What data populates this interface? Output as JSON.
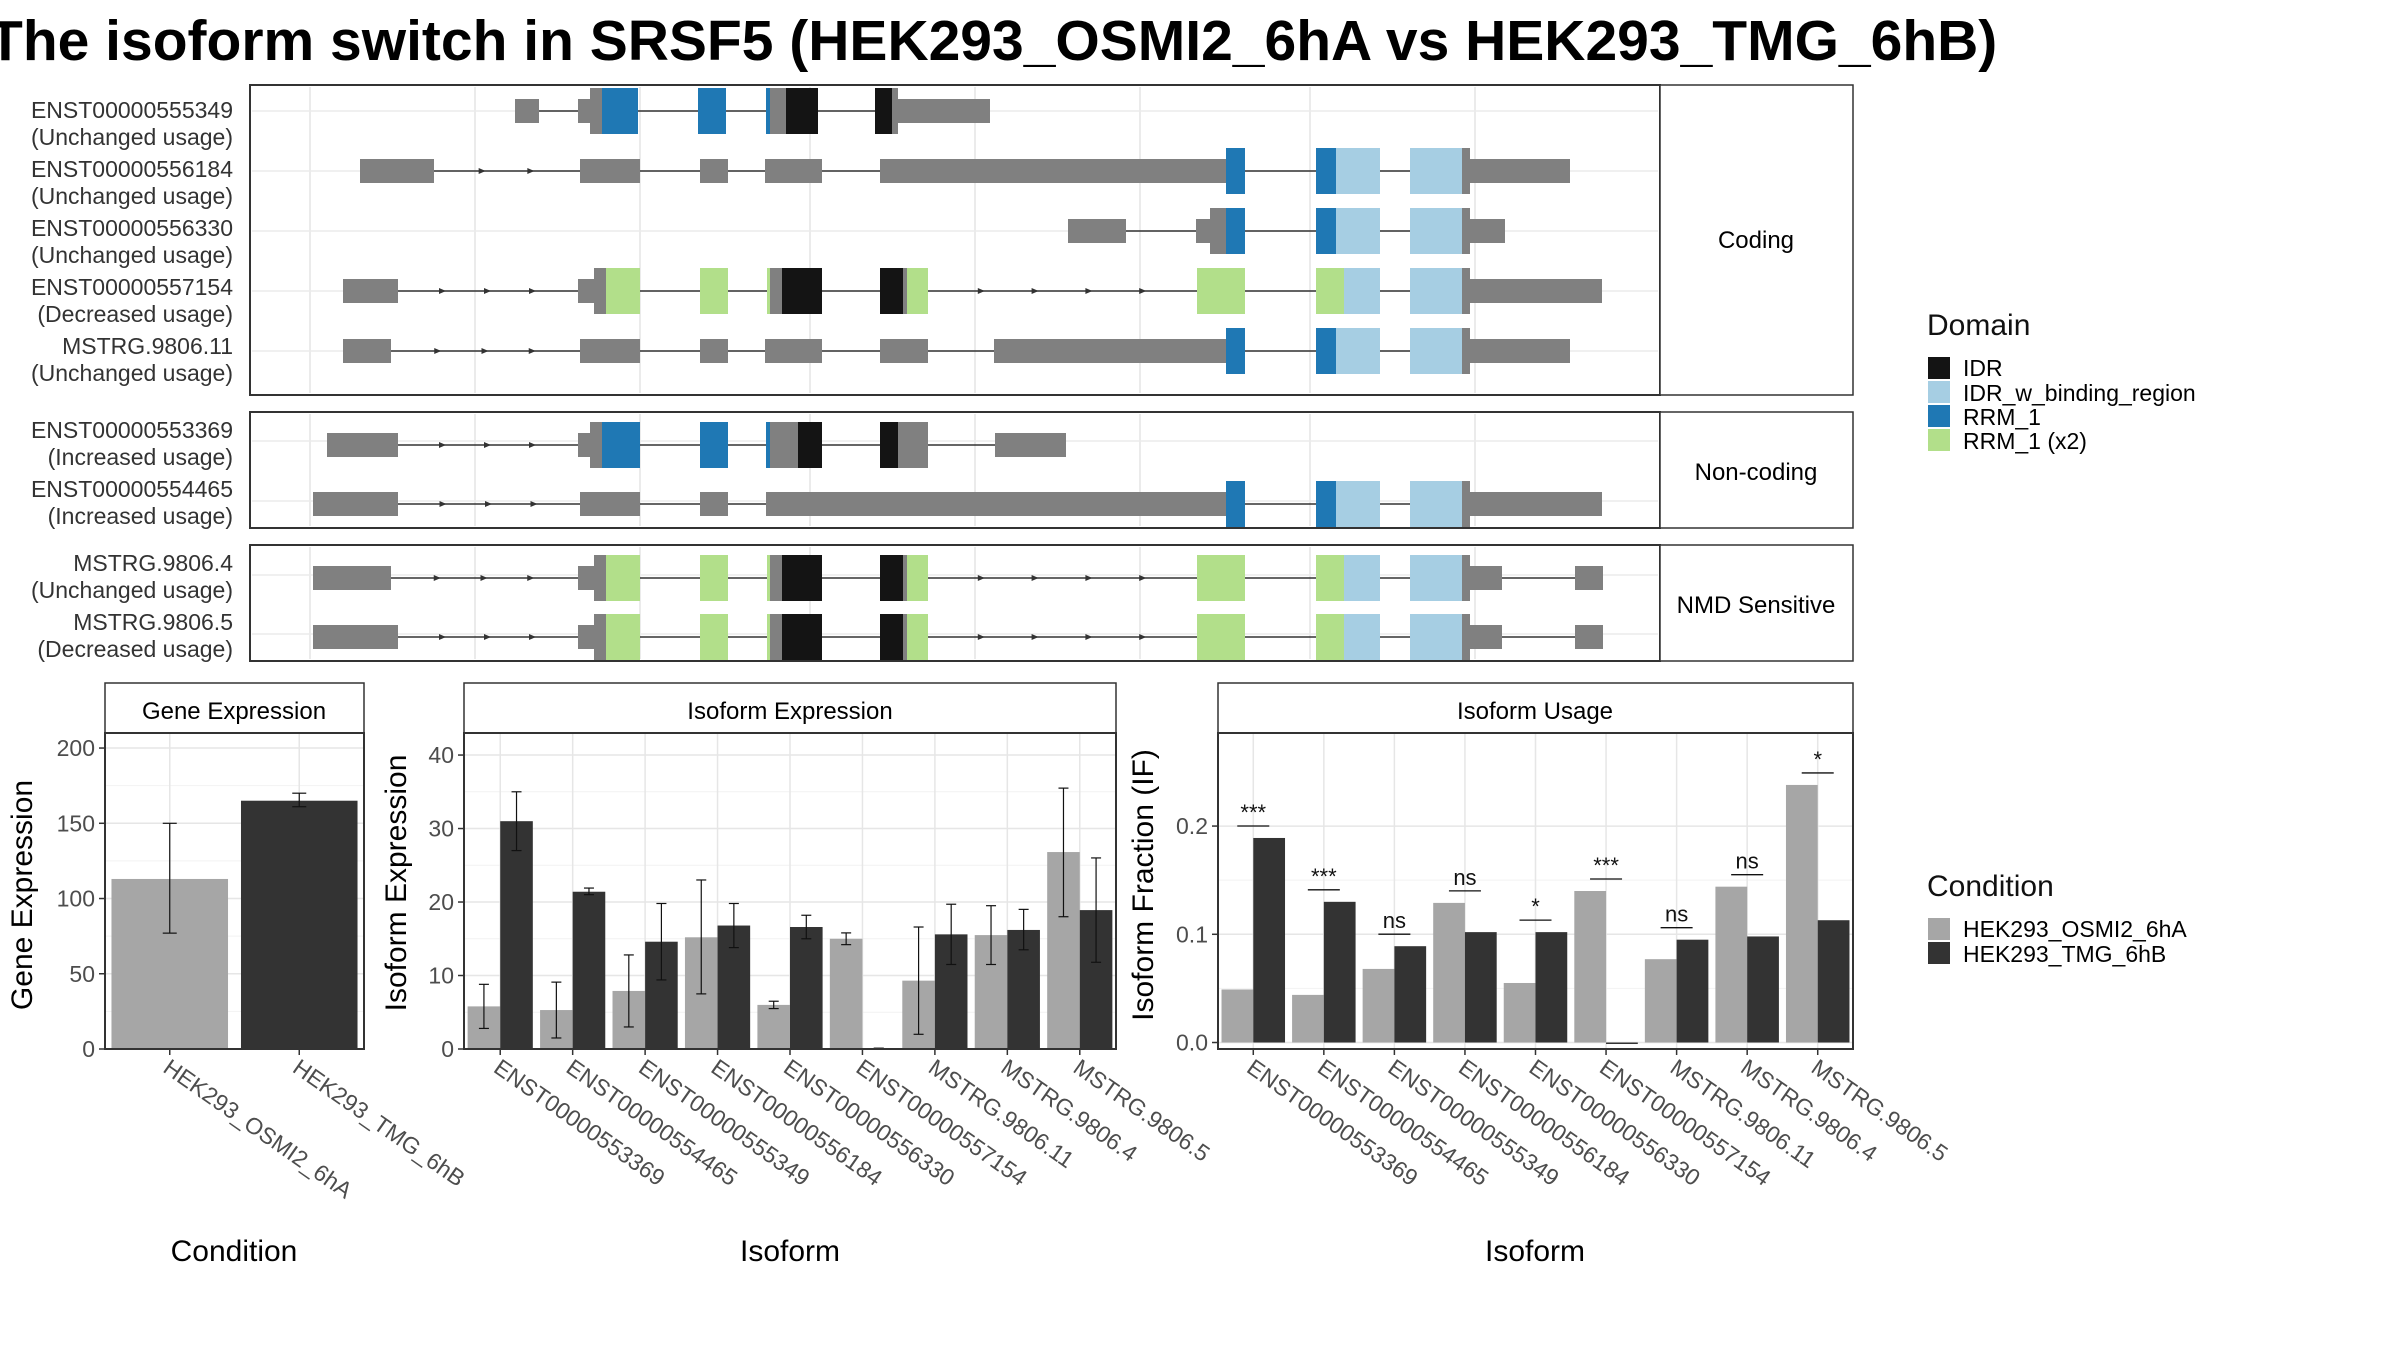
{
  "title": "The isoform switch in SRSF5 (HEK293_OSMI2_6hA vs HEK293_TMG_6hB)",
  "colors": {
    "IDR": "#141414",
    "IDR_w_binding_region": "#a6cee3",
    "RRM_1": "#1f78b4",
    "RRM_1 (x2)": "#b2df8a",
    "HEK293_OSMI2_6hA": "#a6a6a6",
    "HEK293_TMG_6hB": "#333333",
    "exon": "#808080"
  },
  "legends": {
    "domain_title": "Domain",
    "domain_items": [
      "IDR",
      "IDR_w_binding_region",
      "RRM_1",
      "RRM_1 (x2)"
    ],
    "condition_title": "Condition",
    "condition_items": [
      "HEK293_OSMI2_6hA",
      "HEK293_TMG_6hB"
    ]
  },
  "transcripts": [
    {
      "group": "Coding",
      "items": [
        {
          "id": "ENST00000555349",
          "usage": "(Unchanged usage)"
        },
        {
          "id": "ENST00000556184",
          "usage": "(Unchanged usage)"
        },
        {
          "id": "ENST00000556330",
          "usage": "(Unchanged usage)"
        },
        {
          "id": "ENST00000557154",
          "usage": "(Decreased usage)"
        },
        {
          "id": "MSTRG.9806.11",
          "usage": "(Unchanged usage)"
        }
      ]
    },
    {
      "group": "Non-coding",
      "items": [
        {
          "id": "ENST00000553369",
          "usage": "(Increased usage)"
        },
        {
          "id": "ENST00000554465",
          "usage": "(Increased usage)"
        }
      ]
    },
    {
      "group": "NMD Sensitive",
      "items": [
        {
          "id": "MSTRG.9806.4",
          "usage": "(Unchanged usage)"
        },
        {
          "id": "MSTRG.9806.5",
          "usage": "(Decreased usage)"
        }
      ]
    }
  ],
  "chart_data": [
    {
      "type": "bar",
      "title": "Gene Expression",
      "xlabel": "Condition",
      "ylabel": "Gene Expression",
      "ylim": [
        0,
        210
      ],
      "yticks": [
        0,
        50,
        100,
        150,
        200
      ],
      "categories": [
        "HEK293_OSMI2_6hA",
        "HEK293_TMG_6hB"
      ],
      "values": [
        113,
        165
      ],
      "error_low": [
        77,
        161
      ],
      "error_high": [
        150,
        170
      ]
    },
    {
      "type": "bar",
      "title": "Isoform Expression",
      "xlabel": "Isoform",
      "ylabel": "Isoform Expression",
      "ylim": [
        0,
        43
      ],
      "yticks": [
        0,
        10,
        20,
        30,
        40
      ],
      "categories": [
        "ENST00000553369",
        "ENST00000554465",
        "ENST00000555349",
        "ENST00000556184",
        "ENST00000556330",
        "ENST00000557154",
        "MSTRG.9806.11",
        "MSTRG.9806.4",
        "MSTRG.9806.5"
      ],
      "series": [
        {
          "name": "HEK293_OSMI2_6hA",
          "values": [
            5.8,
            5.3,
            7.9,
            15.2,
            6.0,
            15.0,
            9.3,
            15.5,
            26.8
          ],
          "error_low": [
            2.8,
            1.5,
            3.0,
            7.5,
            5.5,
            14.2,
            2.0,
            11.5,
            18.0
          ],
          "error_high": [
            8.8,
            9.1,
            12.8,
            23.0,
            6.5,
            15.8,
            16.6,
            19.5,
            35.5
          ]
        },
        {
          "name": "HEK293_TMG_6hB",
          "values": [
            31.0,
            21.4,
            14.6,
            16.8,
            16.6,
            0.1,
            15.6,
            16.2,
            18.9
          ],
          "error_low": [
            27.0,
            21.0,
            9.4,
            13.8,
            15.0,
            0.1,
            11.5,
            13.5,
            11.8
          ],
          "error_high": [
            35.0,
            21.9,
            19.8,
            19.8,
            18.2,
            0.1,
            19.7,
            19.0,
            26.0
          ]
        }
      ]
    },
    {
      "type": "bar",
      "title": "Isoform Usage",
      "xlabel": "Isoform",
      "ylabel": "Isoform Fraction (IF)",
      "ylim": [
        -0.006,
        0.286
      ],
      "yticks": [
        0.0,
        0.1,
        0.2
      ],
      "ytick_labels": [
        "0.0",
        "0.1",
        "0.2"
      ],
      "categories": [
        "ENST00000553369",
        "ENST00000554465",
        "ENST00000555349",
        "ENST00000556184",
        "ENST00000556330",
        "ENST00000557154",
        "MSTRG.9806.11",
        "MSTRG.9806.4",
        "MSTRG.9806.5"
      ],
      "series": [
        {
          "name": "HEK293_OSMI2_6hA",
          "values": [
            0.049,
            0.044,
            0.068,
            0.129,
            0.055,
            0.14,
            0.077,
            0.144,
            0.238
          ]
        },
        {
          "name": "HEK293_TMG_6hB",
          "values": [
            0.189,
            0.13,
            0.089,
            0.102,
            0.102,
            0.0,
            0.095,
            0.098,
            0.113
          ]
        }
      ],
      "significance": [
        "***",
        "***",
        "ns",
        "ns",
        "*",
        "***",
        "ns",
        "ns",
        "*"
      ]
    }
  ]
}
